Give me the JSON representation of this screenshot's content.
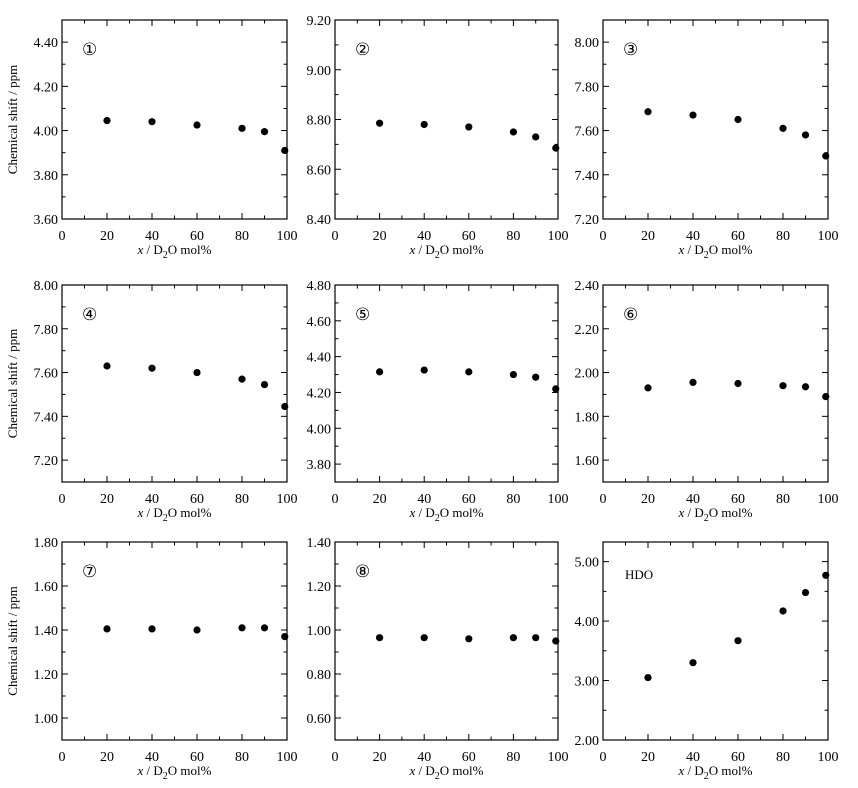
{
  "chart_data": [
    {
      "type": "scatter",
      "panel_label": "①",
      "xlabel_italic": "x",
      "xlabel_rest": " / D",
      "xlabel_sub": "2",
      "xlabel_tail": "O mol%",
      "ylabel": "Chemical shift / ppm",
      "xlim": [
        0,
        100
      ],
      "xticks": [
        "0",
        "20",
        "40",
        "60",
        "80",
        "100"
      ],
      "ylim": [
        3.6,
        4.5
      ],
      "yticks": [
        "3.60",
        "3.80",
        "4.00",
        "4.20",
        "4.40"
      ],
      "x": [
        20,
        40,
        60,
        80,
        90,
        99
      ],
      "y": [
        4.045,
        4.04,
        4.025,
        4.01,
        3.995,
        3.91
      ]
    },
    {
      "type": "scatter",
      "panel_label": "②",
      "xlabel_italic": "x",
      "xlabel_rest": " / D",
      "xlabel_sub": "2",
      "xlabel_tail": "O mol%",
      "ylabel": "",
      "xlim": [
        0,
        100
      ],
      "xticks": [
        "0",
        "20",
        "40",
        "60",
        "80",
        "100"
      ],
      "ylim": [
        8.4,
        9.2
      ],
      "yticks": [
        "8.40",
        "8.60",
        "8.80",
        "9.00",
        "9.20"
      ],
      "x": [
        20,
        40,
        60,
        80,
        90,
        99
      ],
      "y": [
        8.785,
        8.78,
        8.77,
        8.75,
        8.73,
        8.685
      ]
    },
    {
      "type": "scatter",
      "panel_label": "③",
      "xlabel_italic": "x",
      "xlabel_rest": " / D",
      "xlabel_sub": "2",
      "xlabel_tail": "O mol%",
      "ylabel": "",
      "xlim": [
        0,
        100
      ],
      "xticks": [
        "0",
        "20",
        "40",
        "60",
        "80",
        "100"
      ],
      "ylim": [
        7.2,
        8.1
      ],
      "yticks": [
        "7.20",
        "7.40",
        "7.60",
        "7.80",
        "8.00"
      ],
      "x": [
        20,
        40,
        60,
        80,
        90,
        99
      ],
      "y": [
        7.685,
        7.67,
        7.65,
        7.61,
        7.58,
        7.485
      ]
    },
    {
      "type": "scatter",
      "panel_label": "④",
      "xlabel_italic": "x",
      "xlabel_rest": " / D",
      "xlabel_sub": "2",
      "xlabel_tail": "O mol%",
      "ylabel": "Chemical shift / ppm",
      "xlim": [
        0,
        100
      ],
      "xticks": [
        "0",
        "20",
        "40",
        "60",
        "80",
        "100"
      ],
      "ylim": [
        7.1,
        8.0
      ],
      "yticks": [
        "7.20",
        "7.40",
        "7.60",
        "7.80",
        "8.00"
      ],
      "x": [
        20,
        40,
        60,
        80,
        90,
        99
      ],
      "y": [
        7.63,
        7.62,
        7.6,
        7.57,
        7.545,
        7.445
      ]
    },
    {
      "type": "scatter",
      "panel_label": "⑤",
      "xlabel_italic": "x",
      "xlabel_rest": " / D",
      "xlabel_sub": "2",
      "xlabel_tail": "O mol%",
      "ylabel": "",
      "xlim": [
        0,
        100
      ],
      "xticks": [
        "0",
        "20",
        "40",
        "60",
        "80",
        "100"
      ],
      "ylim": [
        3.7,
        4.8
      ],
      "yticks": [
        "3.80",
        "4.00",
        "4.20",
        "4.40",
        "4.60",
        "4.80"
      ],
      "x": [
        20,
        40,
        60,
        80,
        90,
        99
      ],
      "y": [
        4.315,
        4.325,
        4.315,
        4.3,
        4.285,
        4.22
      ]
    },
    {
      "type": "scatter",
      "panel_label": "⑥",
      "xlabel_italic": "x",
      "xlabel_rest": " / D",
      "xlabel_sub": "2",
      "xlabel_tail": "O mol%",
      "ylabel": "",
      "xlim": [
        0,
        100
      ],
      "xticks": [
        "0",
        "20",
        "40",
        "60",
        "80",
        "100"
      ],
      "ylim": [
        1.5,
        2.4
      ],
      "yticks": [
        "1.60",
        "1.80",
        "2.00",
        "2.20",
        "2.40"
      ],
      "x": [
        20,
        40,
        60,
        80,
        90,
        99
      ],
      "y": [
        1.93,
        1.955,
        1.95,
        1.94,
        1.935,
        1.89
      ]
    },
    {
      "type": "scatter",
      "panel_label": "⑦",
      "xlabel_italic": "x",
      "xlabel_rest": " / D",
      "xlabel_sub": "2",
      "xlabel_tail": "O mol%",
      "ylabel": "Chemical shift / ppm",
      "xlim": [
        0,
        100
      ],
      "xticks": [
        "0",
        "20",
        "40",
        "60",
        "80",
        "100"
      ],
      "ylim": [
        0.9,
        1.8
      ],
      "yticks": [
        "1.00",
        "1.20",
        "1.40",
        "1.60",
        "1.80"
      ],
      "x": [
        20,
        40,
        60,
        80,
        90,
        99
      ],
      "y": [
        1.405,
        1.405,
        1.4,
        1.41,
        1.41,
        1.37
      ]
    },
    {
      "type": "scatter",
      "panel_label": "⑧",
      "xlabel_italic": "x",
      "xlabel_rest": " / D",
      "xlabel_sub": "2",
      "xlabel_tail": "O mol%",
      "ylabel": "",
      "xlim": [
        0,
        100
      ],
      "xticks": [
        "0",
        "20",
        "40",
        "60",
        "80",
        "100"
      ],
      "ylim": [
        0.5,
        1.4
      ],
      "yticks": [
        "0.60",
        "0.80",
        "1.00",
        "1.20",
        "1.40"
      ],
      "x": [
        20,
        40,
        60,
        80,
        90,
        99
      ],
      "y": [
        0.965,
        0.965,
        0.96,
        0.965,
        0.965,
        0.95
      ]
    },
    {
      "type": "scatter",
      "panel_label": "HDO",
      "xlabel_italic": "x",
      "xlabel_rest": " / D",
      "xlabel_sub": "2",
      "xlabel_tail": "O mol%",
      "ylabel": "",
      "xlim": [
        0,
        100
      ],
      "xticks": [
        "0",
        "20",
        "40",
        "60",
        "80",
        "100"
      ],
      "ylim": [
        2.0,
        5.33
      ],
      "yticks": [
        "2.00",
        "3.00",
        "4.00",
        "5.00"
      ],
      "x": [
        20,
        40,
        60,
        80,
        90,
        99
      ],
      "y": [
        3.05,
        3.3,
        3.67,
        4.17,
        4.48,
        4.77
      ]
    }
  ]
}
